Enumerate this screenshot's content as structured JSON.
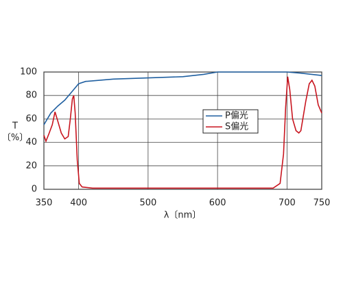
{
  "chart_data": {
    "type": "line",
    "xlabel": "λ〔nm〕",
    "ylabel": [
      "T",
      "〔%〕"
    ],
    "xlim": [
      350,
      750
    ],
    "xticks": [
      350,
      400,
      500,
      600,
      700,
      750
    ],
    "ylim": [
      0,
      100
    ],
    "yticks": [
      0,
      20,
      40,
      60,
      80,
      100
    ],
    "grid": true,
    "series": [
      {
        "name": "P偏光",
        "color": "#1f5fa0",
        "x": [
          350,
          360,
          370,
          380,
          390,
          400,
          410,
          450,
          500,
          550,
          580,
          600,
          650,
          700,
          720,
          750
        ],
        "values": [
          55,
          65,
          71,
          76,
          83,
          90,
          92,
          94,
          95,
          96,
          98,
          100,
          100,
          100,
          99,
          97
        ]
      },
      {
        "name": "S偏光",
        "color": "#c8141e",
        "x": [
          350,
          353,
          357,
          362,
          366,
          370,
          375,
          380,
          385,
          388,
          391,
          393,
          395,
          398,
          401,
          405,
          420,
          500,
          600,
          680,
          690,
          695,
          698,
          701,
          704,
          708,
          713,
          717,
          720,
          727,
          732,
          736,
          740,
          745,
          750
        ],
        "values": [
          46,
          41,
          47,
          55,
          66,
          58,
          48,
          43,
          45,
          60,
          77,
          80,
          65,
          25,
          5,
          2,
          1,
          1,
          1,
          1,
          5,
          30,
          70,
          96,
          85,
          60,
          50,
          48,
          50,
          75,
          90,
          93,
          88,
          72,
          65
        ]
      }
    ]
  }
}
